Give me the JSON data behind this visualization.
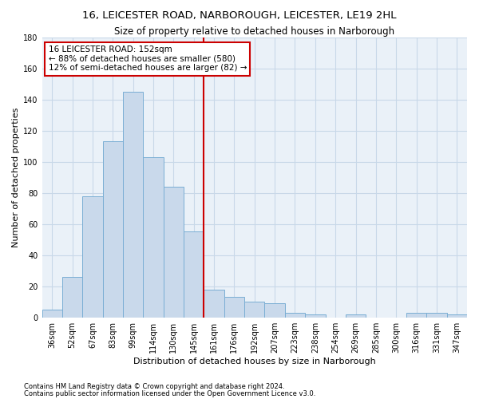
{
  "title1": "16, LEICESTER ROAD, NARBOROUGH, LEICESTER, LE19 2HL",
  "title2": "Size of property relative to detached houses in Narborough",
  "xlabel": "Distribution of detached houses by size in Narborough",
  "ylabel": "Number of detached properties",
  "categories": [
    "36sqm",
    "52sqm",
    "67sqm",
    "83sqm",
    "99sqm",
    "114sqm",
    "130sqm",
    "145sqm",
    "161sqm",
    "176sqm",
    "192sqm",
    "207sqm",
    "223sqm",
    "238sqm",
    "254sqm",
    "269sqm",
    "285sqm",
    "300sqm",
    "316sqm",
    "331sqm",
    "347sqm"
  ],
  "values": [
    5,
    26,
    78,
    113,
    145,
    103,
    84,
    55,
    18,
    13,
    10,
    9,
    3,
    2,
    0,
    2,
    0,
    0,
    3,
    3,
    2
  ],
  "bar_color": "#c9d9eb",
  "bar_edge_color": "#7aaed4",
  "vline_color": "#cc0000",
  "annotation_text": "16 LEICESTER ROAD: 152sqm\n← 88% of detached houses are smaller (580)\n12% of semi-detached houses are larger (82) →",
  "annotation_box_color": "#ffffff",
  "annotation_box_edge": "#cc0000",
  "ylim": [
    0,
    180
  ],
  "yticks": [
    0,
    20,
    40,
    60,
    80,
    100,
    120,
    140,
    160,
    180
  ],
  "grid_color": "#c8d8e8",
  "background_color": "#eaf1f8",
  "footer1": "Contains HM Land Registry data © Crown copyright and database right 2024.",
  "footer2": "Contains public sector information licensed under the Open Government Licence v3.0.",
  "title1_fontsize": 9.5,
  "title2_fontsize": 8.5,
  "xlabel_fontsize": 8,
  "ylabel_fontsize": 8,
  "tick_fontsize": 7,
  "annot_fontsize": 7.5,
  "footer_fontsize": 6
}
